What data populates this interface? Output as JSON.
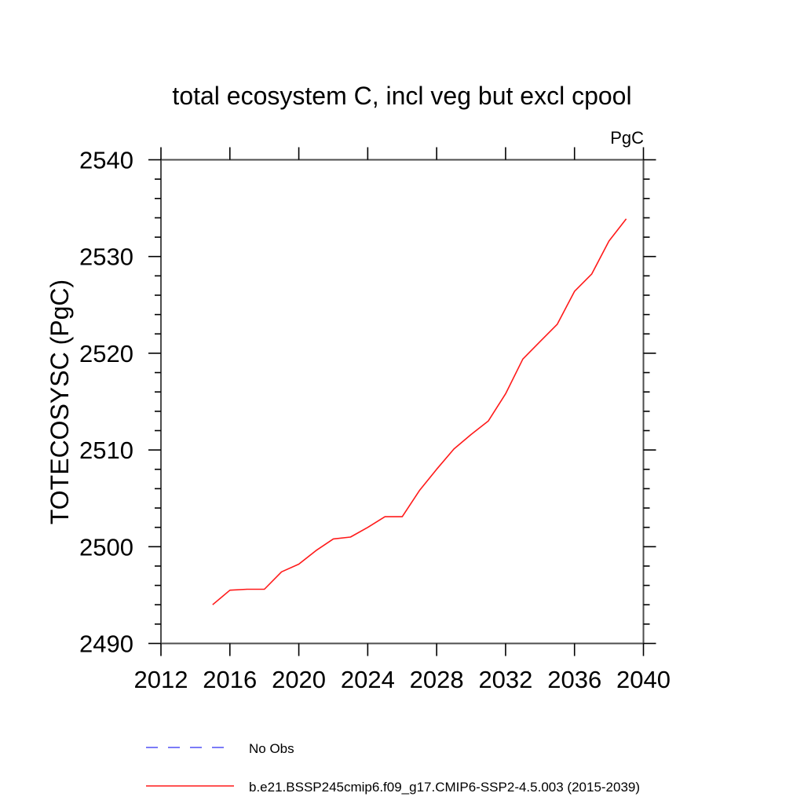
{
  "chart_data": {
    "type": "line",
    "title": "total ecosystem C, incl veg but excl cpool",
    "unit_label": "PgC",
    "ylabel": "TOTECOSYSC  (PgC)",
    "xlabel": "",
    "xlim": [
      2012,
      2040
    ],
    "ylim": [
      2490,
      2540
    ],
    "x_ticks": [
      2012,
      2016,
      2020,
      2024,
      2028,
      2032,
      2036,
      2040
    ],
    "y_ticks": [
      2490,
      2500,
      2510,
      2520,
      2530,
      2540
    ],
    "y_minor_step": 2,
    "grid": false,
    "legend_position": "below-left",
    "axis_color": "#4d4d4d",
    "tick_color": "#000000",
    "series": [
      {
        "name": "No Obs",
        "style": "dashed",
        "color": "#7b7bf8",
        "x": [],
        "values": []
      },
      {
        "name": "b.e21.BSSP245cmip6.f09_g17.CMIP6-SSP2-4.5.003 (2015-2039)",
        "style": "solid",
        "color": "#ff1a1a",
        "x": [
          2015,
          2016,
          2017,
          2018,
          2019,
          2020,
          2021,
          2022,
          2023,
          2024,
          2025,
          2026,
          2027,
          2028,
          2029,
          2030,
          2031,
          2032,
          2033,
          2034,
          2035,
          2036,
          2037,
          2038,
          2039
        ],
        "values": [
          2494.0,
          2495.5,
          2495.6,
          2495.6,
          2497.4,
          2498.2,
          2499.6,
          2500.8,
          2501.0,
          2502.0,
          2503.1,
          2503.1,
          2505.8,
          2508.0,
          2510.1,
          2511.6,
          2513.0,
          2515.8,
          2519.4,
          2521.2,
          2523.0,
          2526.4,
          2528.2,
          2531.6,
          2533.9
        ]
      }
    ]
  }
}
